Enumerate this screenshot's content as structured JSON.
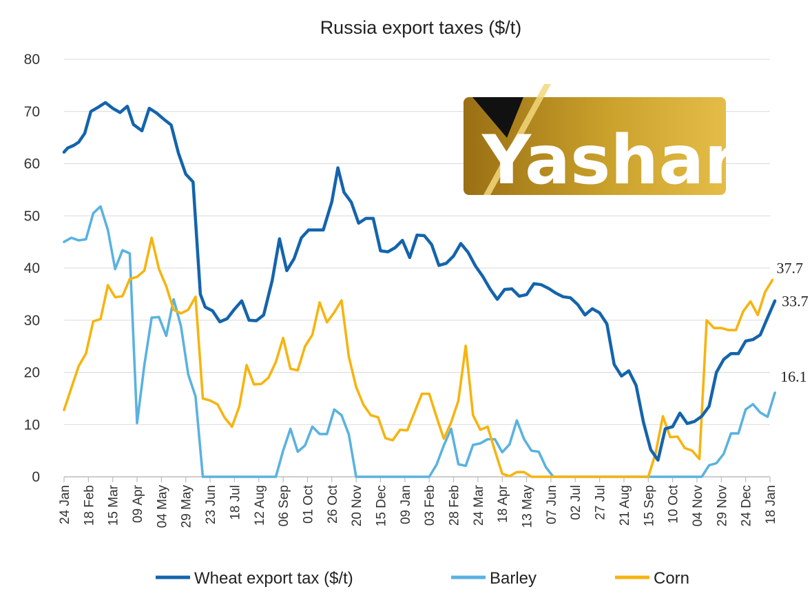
{
  "chart_data": {
    "type": "line",
    "title": "Russia export taxes ($/t)",
    "xlabel": "",
    "ylabel": "",
    "ylim": [
      0,
      80
    ],
    "yticks": [
      0,
      10,
      20,
      30,
      40,
      50,
      60,
      70,
      80
    ],
    "grid": "horizontal",
    "legend": "bottom",
    "x_tick_labels": [
      "24 Jan",
      "18 Feb",
      "15 Mar",
      "09 Apr",
      "04 May",
      "29 May",
      "23 Jun",
      "18 Jul",
      "12 Aug",
      "06 Sep",
      "01 Oct",
      "26 Oct",
      "20 Nov",
      "15 Dec",
      "09 Jan",
      "03 Feb",
      "28 Feb",
      "24 Mar",
      "18 Apr",
      "13 May",
      "07 Jun",
      "02 Jul",
      "27 Jul",
      "21 Aug",
      "15 Sep",
      "10 Oct",
      "04 Nov",
      "29 Nov",
      "24 Dec",
      "18 Jan"
    ],
    "series": [
      {
        "name": "Wheat export tax ($/t)",
        "color": "#1464ac",
        "end_label": "33.7",
        "points": [
          [
            0,
            62.2
          ],
          [
            0.15,
            63
          ],
          [
            0.4,
            63.5
          ],
          [
            0.6,
            64.1
          ],
          [
            0.85,
            65.8
          ],
          [
            1.1,
            70
          ],
          [
            1.4,
            70.8
          ],
          [
            1.7,
            71.7
          ],
          [
            2.0,
            70.6
          ],
          [
            2.3,
            69.8
          ],
          [
            2.6,
            71
          ],
          [
            2.85,
            67.5
          ],
          [
            3.2,
            66.3
          ],
          [
            3.5,
            70.6
          ],
          [
            3.8,
            69.7
          ],
          [
            4.1,
            68.5
          ],
          [
            4.4,
            67.4
          ],
          [
            4.7,
            62
          ],
          [
            5.0,
            58
          ],
          [
            5.3,
            56.5
          ],
          [
            5.6,
            35
          ],
          [
            5.8,
            32.5
          ],
          [
            6.1,
            31.8
          ],
          [
            6.4,
            29.7
          ],
          [
            6.7,
            30.3
          ],
          [
            7.0,
            32.1
          ],
          [
            7.3,
            33.7
          ],
          [
            7.6,
            30
          ],
          [
            7.9,
            29.9
          ],
          [
            8.2,
            31
          ],
          [
            8.55,
            37.6
          ],
          [
            8.85,
            45.6
          ],
          [
            9.15,
            39.5
          ],
          [
            9.45,
            41.8
          ],
          [
            9.75,
            45.8
          ],
          [
            10.05,
            47.3
          ],
          [
            10.35,
            47.3
          ],
          [
            10.65,
            47.3
          ],
          [
            11.0,
            52.7
          ],
          [
            11.25,
            59.2
          ],
          [
            11.5,
            54.5
          ],
          [
            11.8,
            52.6
          ],
          [
            12.1,
            48.6
          ],
          [
            12.4,
            49.5
          ],
          [
            12.7,
            49.5
          ],
          [
            13.0,
            43.3
          ],
          [
            13.3,
            43.1
          ],
          [
            13.6,
            43.9
          ],
          [
            13.9,
            45.3
          ],
          [
            14.2,
            42
          ],
          [
            14.5,
            46.3
          ],
          [
            14.8,
            46.2
          ],
          [
            15.1,
            44.5
          ],
          [
            15.4,
            40.5
          ],
          [
            15.7,
            40.9
          ],
          [
            16.0,
            42.3
          ],
          [
            16.3,
            44.7
          ],
          [
            16.6,
            43
          ],
          [
            16.9,
            40.4
          ],
          [
            17.2,
            38.4
          ],
          [
            17.5,
            36
          ],
          [
            17.8,
            34
          ],
          [
            18.1,
            35.9
          ],
          [
            18.4,
            36
          ],
          [
            18.7,
            34.6
          ],
          [
            19.0,
            34.9
          ],
          [
            19.3,
            37
          ],
          [
            19.6,
            36.8
          ],
          [
            19.9,
            36.1
          ],
          [
            20.2,
            35.2
          ],
          [
            20.5,
            34.5
          ],
          [
            20.8,
            34.3
          ],
          [
            21.1,
            33
          ],
          [
            21.4,
            31
          ],
          [
            21.7,
            32.2
          ],
          [
            22.0,
            31.4
          ],
          [
            22.3,
            29.3
          ],
          [
            22.6,
            21.5
          ],
          [
            22.9,
            19.3
          ],
          [
            23.2,
            20.3
          ],
          [
            23.5,
            17.5
          ],
          [
            23.8,
            10.5
          ],
          [
            24.1,
            5.2
          ],
          [
            24.4,
            3.2
          ],
          [
            24.7,
            9.2
          ],
          [
            25.0,
            9.6
          ],
          [
            25.3,
            12.2
          ],
          [
            25.6,
            10.2
          ],
          [
            25.9,
            10.6
          ],
          [
            26.2,
            11.6
          ],
          [
            26.5,
            13.5
          ],
          [
            26.8,
            20
          ],
          [
            27.1,
            22.5
          ],
          [
            27.4,
            23.6
          ],
          [
            27.7,
            23.6
          ],
          [
            28.0,
            26
          ],
          [
            28.3,
            26.3
          ],
          [
            28.6,
            27.2
          ],
          [
            28.9,
            30.5
          ],
          [
            29.2,
            33.7
          ]
        ]
      },
      {
        "name": "Barley",
        "color": "#5ab2e0",
        "end_label": "16.1",
        "points": [
          [
            0,
            45
          ],
          [
            0.3,
            45.8
          ],
          [
            0.6,
            45.3
          ],
          [
            0.9,
            45.5
          ],
          [
            1.2,
            50.5
          ],
          [
            1.5,
            51.8
          ],
          [
            1.8,
            47.3
          ],
          [
            2.1,
            39.8
          ],
          [
            2.4,
            43.4
          ],
          [
            2.7,
            42.8
          ],
          [
            3.0,
            10.3
          ],
          [
            3.3,
            21.4
          ],
          [
            3.6,
            30.5
          ],
          [
            3.9,
            30.6
          ],
          [
            4.2,
            27
          ],
          [
            4.5,
            34
          ],
          [
            4.8,
            28.9
          ],
          [
            5.1,
            19.6
          ],
          [
            5.4,
            15.4
          ],
          [
            5.7,
            0
          ],
          [
            8.7,
            0
          ],
          [
            9.0,
            5
          ],
          [
            9.3,
            9.2
          ],
          [
            9.6,
            4.8
          ],
          [
            9.9,
            6
          ],
          [
            10.2,
            9.6
          ],
          [
            10.5,
            8.2
          ],
          [
            10.8,
            8.2
          ],
          [
            11.1,
            12.9
          ],
          [
            11.4,
            11.8
          ],
          [
            11.7,
            8.1
          ],
          [
            12.0,
            0
          ],
          [
            15.0,
            0
          ],
          [
            15.3,
            2.3
          ],
          [
            15.6,
            6
          ],
          [
            15.9,
            9.2
          ],
          [
            16.2,
            2.4
          ],
          [
            16.5,
            2.1
          ],
          [
            16.8,
            6.1
          ],
          [
            17.1,
            6.4
          ],
          [
            17.4,
            7.2
          ],
          [
            17.7,
            7.2
          ],
          [
            18.0,
            4.7
          ],
          [
            18.3,
            6.2
          ],
          [
            18.6,
            10.8
          ],
          [
            18.9,
            7.2
          ],
          [
            19.2,
            5
          ],
          [
            19.5,
            4.8
          ],
          [
            19.8,
            1.8
          ],
          [
            20.1,
            0
          ],
          [
            26.2,
            0
          ],
          [
            26.5,
            2.2
          ],
          [
            26.8,
            2.6
          ],
          [
            27.1,
            4.4
          ],
          [
            27.4,
            8.3
          ],
          [
            27.7,
            8.3
          ],
          [
            28.0,
            12.9
          ],
          [
            28.3,
            13.9
          ],
          [
            28.6,
            12.3
          ],
          [
            28.9,
            11.5
          ],
          [
            29.2,
            16.1
          ]
        ]
      },
      {
        "name": "Corn",
        "color": "#f6b40f",
        "end_label": "37.7",
        "points": [
          [
            0,
            12.8
          ],
          [
            0.3,
            17
          ],
          [
            0.6,
            21.2
          ],
          [
            0.9,
            23.6
          ],
          [
            1.2,
            29.8
          ],
          [
            1.5,
            30.2
          ],
          [
            1.8,
            36.7
          ],
          [
            2.1,
            34.4
          ],
          [
            2.4,
            34.6
          ],
          [
            2.7,
            37.9
          ],
          [
            3.0,
            38.3
          ],
          [
            3.3,
            39.5
          ],
          [
            3.6,
            45.8
          ],
          [
            3.9,
            39.8
          ],
          [
            4.2,
            36.5
          ],
          [
            4.5,
            32
          ],
          [
            4.8,
            31.3
          ],
          [
            5.1,
            32
          ],
          [
            5.4,
            34.5
          ],
          [
            5.7,
            15
          ],
          [
            6.0,
            14.6
          ],
          [
            6.3,
            13.9
          ],
          [
            6.6,
            11.3
          ],
          [
            6.9,
            9.6
          ],
          [
            7.2,
            13.5
          ],
          [
            7.5,
            21.4
          ],
          [
            7.8,
            17.7
          ],
          [
            8.1,
            17.8
          ],
          [
            8.4,
            19
          ],
          [
            8.7,
            22
          ],
          [
            9.0,
            26.6
          ],
          [
            9.3,
            20.7
          ],
          [
            9.6,
            20.4
          ],
          [
            9.9,
            25
          ],
          [
            10.2,
            27.2
          ],
          [
            10.5,
            33.4
          ],
          [
            10.8,
            29.6
          ],
          [
            11.1,
            31.5
          ],
          [
            11.4,
            33.8
          ],
          [
            11.7,
            23
          ],
          [
            12.0,
            17.2
          ],
          [
            12.3,
            13.8
          ],
          [
            12.6,
            11.8
          ],
          [
            12.9,
            11.4
          ],
          [
            13.2,
            7.4
          ],
          [
            13.5,
            7
          ],
          [
            13.8,
            9
          ],
          [
            14.1,
            8.9
          ],
          [
            14.4,
            12.4
          ],
          [
            14.7,
            15.9
          ],
          [
            15.0,
            15.9
          ],
          [
            15.3,
            11.5
          ],
          [
            15.6,
            7.3
          ],
          [
            15.9,
            10.4
          ],
          [
            16.2,
            14.6
          ],
          [
            16.5,
            25.1
          ],
          [
            16.8,
            11.8
          ],
          [
            17.1,
            9
          ],
          [
            17.4,
            9.6
          ],
          [
            17.7,
            5
          ],
          [
            18.0,
            0.6
          ],
          [
            18.3,
            0.1
          ],
          [
            18.6,
            0.9
          ],
          [
            18.9,
            0.9
          ],
          [
            19.2,
            0
          ],
          [
            24.0,
            0
          ],
          [
            24.3,
            4.5
          ],
          [
            24.6,
            11.6
          ],
          [
            24.9,
            7.6
          ],
          [
            25.2,
            7.7
          ],
          [
            25.5,
            5.5
          ],
          [
            25.8,
            5
          ],
          [
            26.1,
            3.4
          ],
          [
            26.4,
            30
          ],
          [
            26.7,
            28.5
          ],
          [
            27.0,
            28.5
          ],
          [
            27.3,
            28.1
          ],
          [
            27.6,
            28.1
          ],
          [
            27.9,
            31.7
          ],
          [
            28.2,
            33.6
          ],
          [
            28.5,
            31
          ],
          [
            28.8,
            35.4
          ],
          [
            29.1,
            37.7
          ]
        ]
      }
    ]
  },
  "logo": {
    "text": "Yashar",
    "colors": {
      "dark": "#9a6f14",
      "light": "#e2b53a",
      "black": "#111111",
      "white": "#ffffff"
    }
  }
}
